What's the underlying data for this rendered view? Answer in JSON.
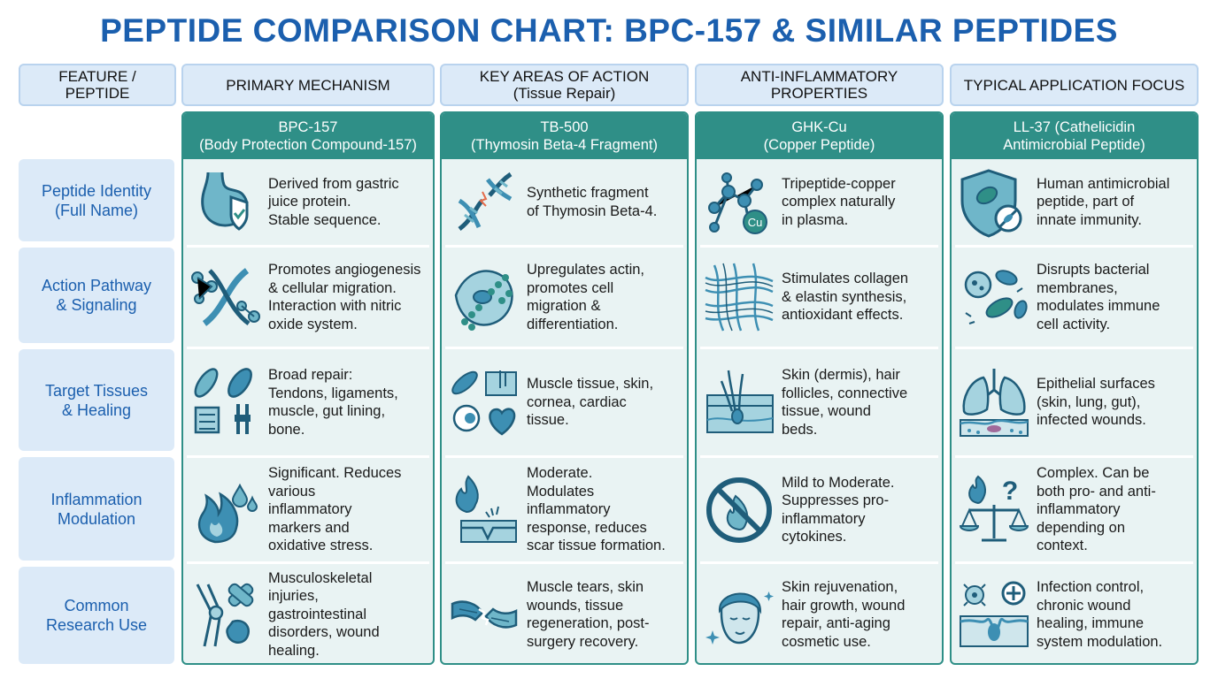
{
  "title": "PEPTIDE COMPARISON CHART: BPC-157 & SIMILAR PEPTIDES",
  "headers": [
    "FEATURE / PEPTIDE",
    "PRIMARY MECHANISM",
    "KEY AREAS OF ACTION\n(Tissue Repair)",
    "ANTI-INFLAMMATORY\nPROPERTIES",
    "TYPICAL APPLICATION FOCUS"
  ],
  "rows": [
    "Peptide Identity\n(Full Name)",
    "Action Pathway\n& Signaling",
    "Target Tissues\n& Healing",
    "Inflammation\nModulation",
    "Common\nResearch Use"
  ],
  "peptides": [
    {
      "name": "BPC-157\n(Body Protection Compound-157)",
      "cells": [
        {
          "text": "Derived from gastric\njuice protein.\nStable sequence.",
          "icon": "stomach-shield-icon"
        },
        {
          "text": "Promotes angiogenesis\n& cellular migration.\nInteraction with nitric\noxide system.",
          "icon": "dna-molecule-icon"
        },
        {
          "text": "Broad repair:\nTendons, ligaments,\nmuscle, gut lining,\nbone.",
          "icon": "tissues-icon"
        },
        {
          "text": "Significant. Reduces\nvarious\ninflammatory\nmarkers and\noxidative stress.",
          "icon": "flame-drops-icon"
        },
        {
          "text": "Musculoskeletal\ninjuries,\ngastrointestinal\ndisorders, wound\nhealing.",
          "icon": "knee-bandage-icon"
        }
      ]
    },
    {
      "name": "TB-500\n(Thymosin Beta-4 Fragment)",
      "cells": [
        {
          "text": "Synthetic fragment\nof Thymosin Beta-4.",
          "icon": "dna-fragment-icon"
        },
        {
          "text": "Upregulates actin,\npromotes cell\nmigration &\ndifferentiation.",
          "icon": "actin-cell-icon"
        },
        {
          "text": "Muscle tissue, skin,\ncornea, cardiac\ntissue.",
          "icon": "muscle-eye-heart-icon"
        },
        {
          "text": "Moderate.\nModulates\ninflammatory\nresponse, reduces\nscar tissue formation.",
          "icon": "flame-wound-icon"
        },
        {
          "text": "Muscle tears, skin\nwounds, tissue\nregeneration, post-\nsurgery recovery.",
          "icon": "torn-muscle-icon"
        }
      ]
    },
    {
      "name": "GHK-Cu\n(Copper Peptide)",
      "cells": [
        {
          "text": "Tripeptide-copper\ncomplex naturally\nin plasma.",
          "icon": "copper-molecule-icon"
        },
        {
          "text": "Stimulates collagen\n& elastin synthesis,\nantioxidant effects.",
          "icon": "collagen-fibers-icon"
        },
        {
          "text": "Skin (dermis), hair\nfollicles, connective\ntissue, wound\nbeds.",
          "icon": "skin-hair-icon"
        },
        {
          "text": "Mild to Moderate.\nSuppresses pro-\ninflammatory\ncytokines.",
          "icon": "no-flame-icon"
        },
        {
          "text": "Skin rejuvenation,\nhair growth, wound\nrepair, anti-aging\ncosmetic use.",
          "icon": "face-icon"
        }
      ]
    },
    {
      "name": "LL-37 (Cathelicidin\nAntimicrobial Peptide)",
      "cells": [
        {
          "text": "Human antimicrobial\npeptide, part of\ninnate immunity.",
          "icon": "shield-bacteria-icon"
        },
        {
          "text": "Disrupts bacterial\nmembranes,\nmodulates immune\ncell activity.",
          "icon": "bacteria-icon"
        },
        {
          "text": "Epithelial surfaces\n(skin, lung, gut),\ninfected wounds.",
          "icon": "lungs-icon"
        },
        {
          "text": "Complex. Can be\nboth pro- and anti-\ninflammatory\ndepending on\ncontext.",
          "icon": "scale-flame-icon"
        },
        {
          "text": "Infection control,\nchronic wound\nhealing, immune\nsystem modulation.",
          "icon": "wound-plus-icon"
        }
      ]
    }
  ]
}
